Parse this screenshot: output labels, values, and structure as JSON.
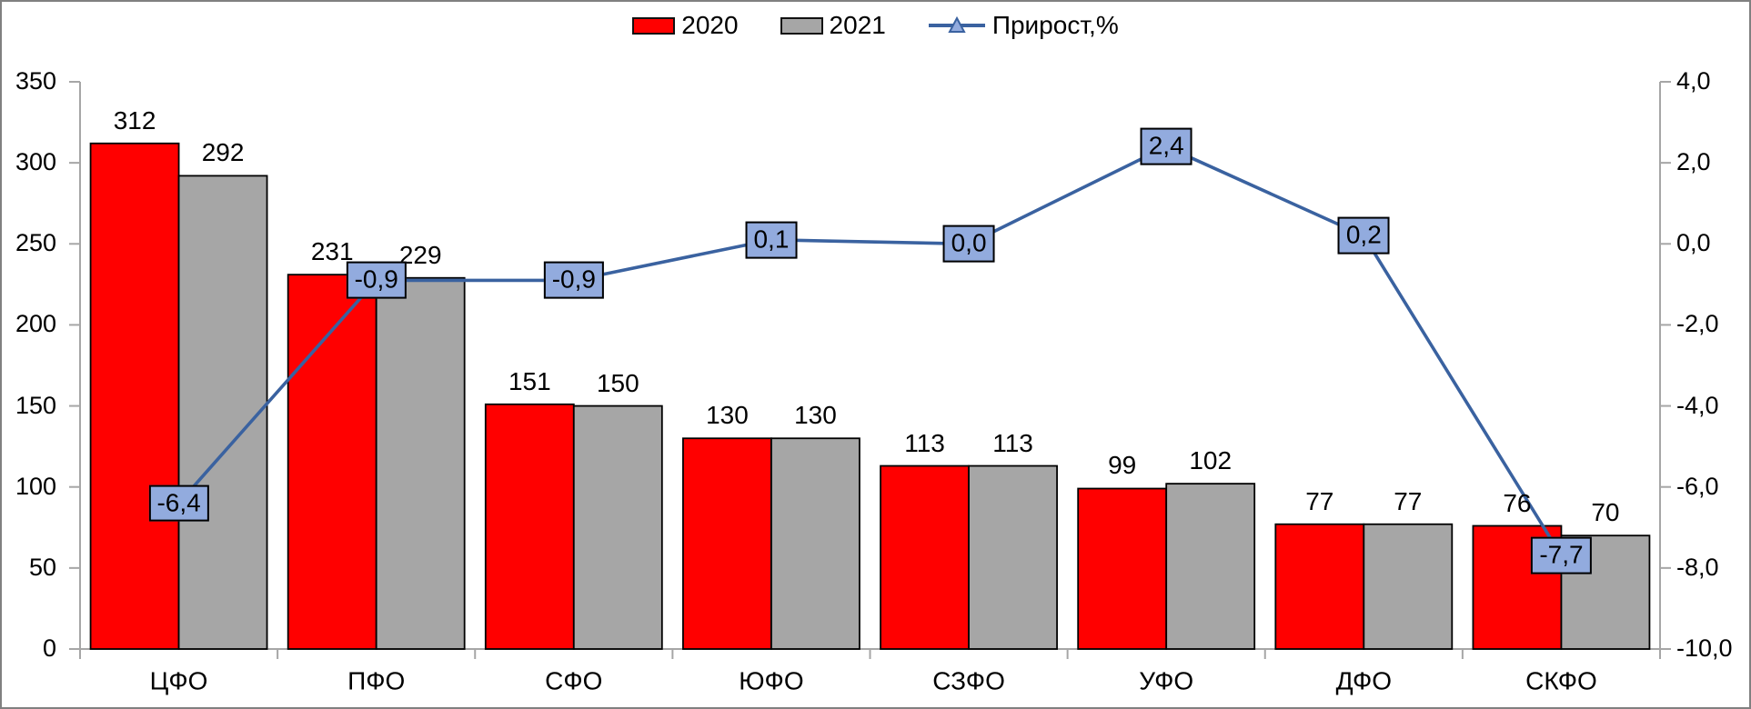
{
  "legend": {
    "items": [
      {
        "label": "2020",
        "icon": "bar-swatch",
        "color": "#FF0000"
      },
      {
        "label": "2021",
        "icon": "bar-swatch",
        "color": "#A6A6A6"
      },
      {
        "label": "Прирост,%",
        "icon": "line-marker",
        "color": "#3A62A0",
        "marker_fill": "#92ABDE"
      }
    ]
  },
  "chart_data": {
    "type": "bar+line combo",
    "title": "",
    "categories": [
      "ЦФО",
      "ПФО",
      "СФО",
      "ЮФО",
      "СЗФО",
      "УФО",
      "ДФО",
      "СКФО"
    ],
    "series": [
      {
        "name": "2020",
        "type": "bar",
        "axis": "left",
        "color": "#FF0000",
        "values": [
          312,
          231,
          151,
          130,
          113,
          99,
          77,
          76
        ],
        "value_labels": [
          "312",
          "231",
          "151",
          "130",
          "113",
          "99",
          "77",
          "76"
        ]
      },
      {
        "name": "2021",
        "type": "bar",
        "axis": "left",
        "color": "#A6A6A6",
        "values": [
          292,
          229,
          150,
          130,
          113,
          102,
          77,
          70
        ],
        "value_labels": [
          "292",
          "229",
          "150",
          "130",
          "113",
          "102",
          "77",
          "70"
        ]
      },
      {
        "name": "Прирост,%",
        "type": "line",
        "axis": "right",
        "color": "#3A62A0",
        "label_fill": "#92ABDE",
        "values": [
          -6.4,
          -0.9,
          -0.9,
          0.1,
          0.0,
          2.4,
          0.2,
          -7.7
        ],
        "value_labels": [
          "-6,4",
          "-0,9",
          "-0,9",
          "0,1",
          "0,0",
          "2,4",
          "0,2",
          "-7,7"
        ]
      }
    ],
    "left_axis": {
      "min": 0,
      "max": 350,
      "step": 50,
      "tick_labels": [
        "0",
        "50",
        "100",
        "150",
        "200",
        "250",
        "300",
        "350"
      ]
    },
    "right_axis": {
      "min": -10,
      "max": 4,
      "step": 2,
      "tick_labels": [
        "-10,0",
        "-8,0",
        "-6,0",
        "-4,0",
        "-2,0",
        "0,0",
        "2,0",
        "4,0"
      ]
    },
    "legend_position": "top",
    "grid": false
  },
  "colors": {
    "axis_line": "#A6A6A6",
    "bar_outline": "#000000",
    "frame_border": "#808080",
    "background": "#FFFFFF",
    "text": "#000000"
  }
}
